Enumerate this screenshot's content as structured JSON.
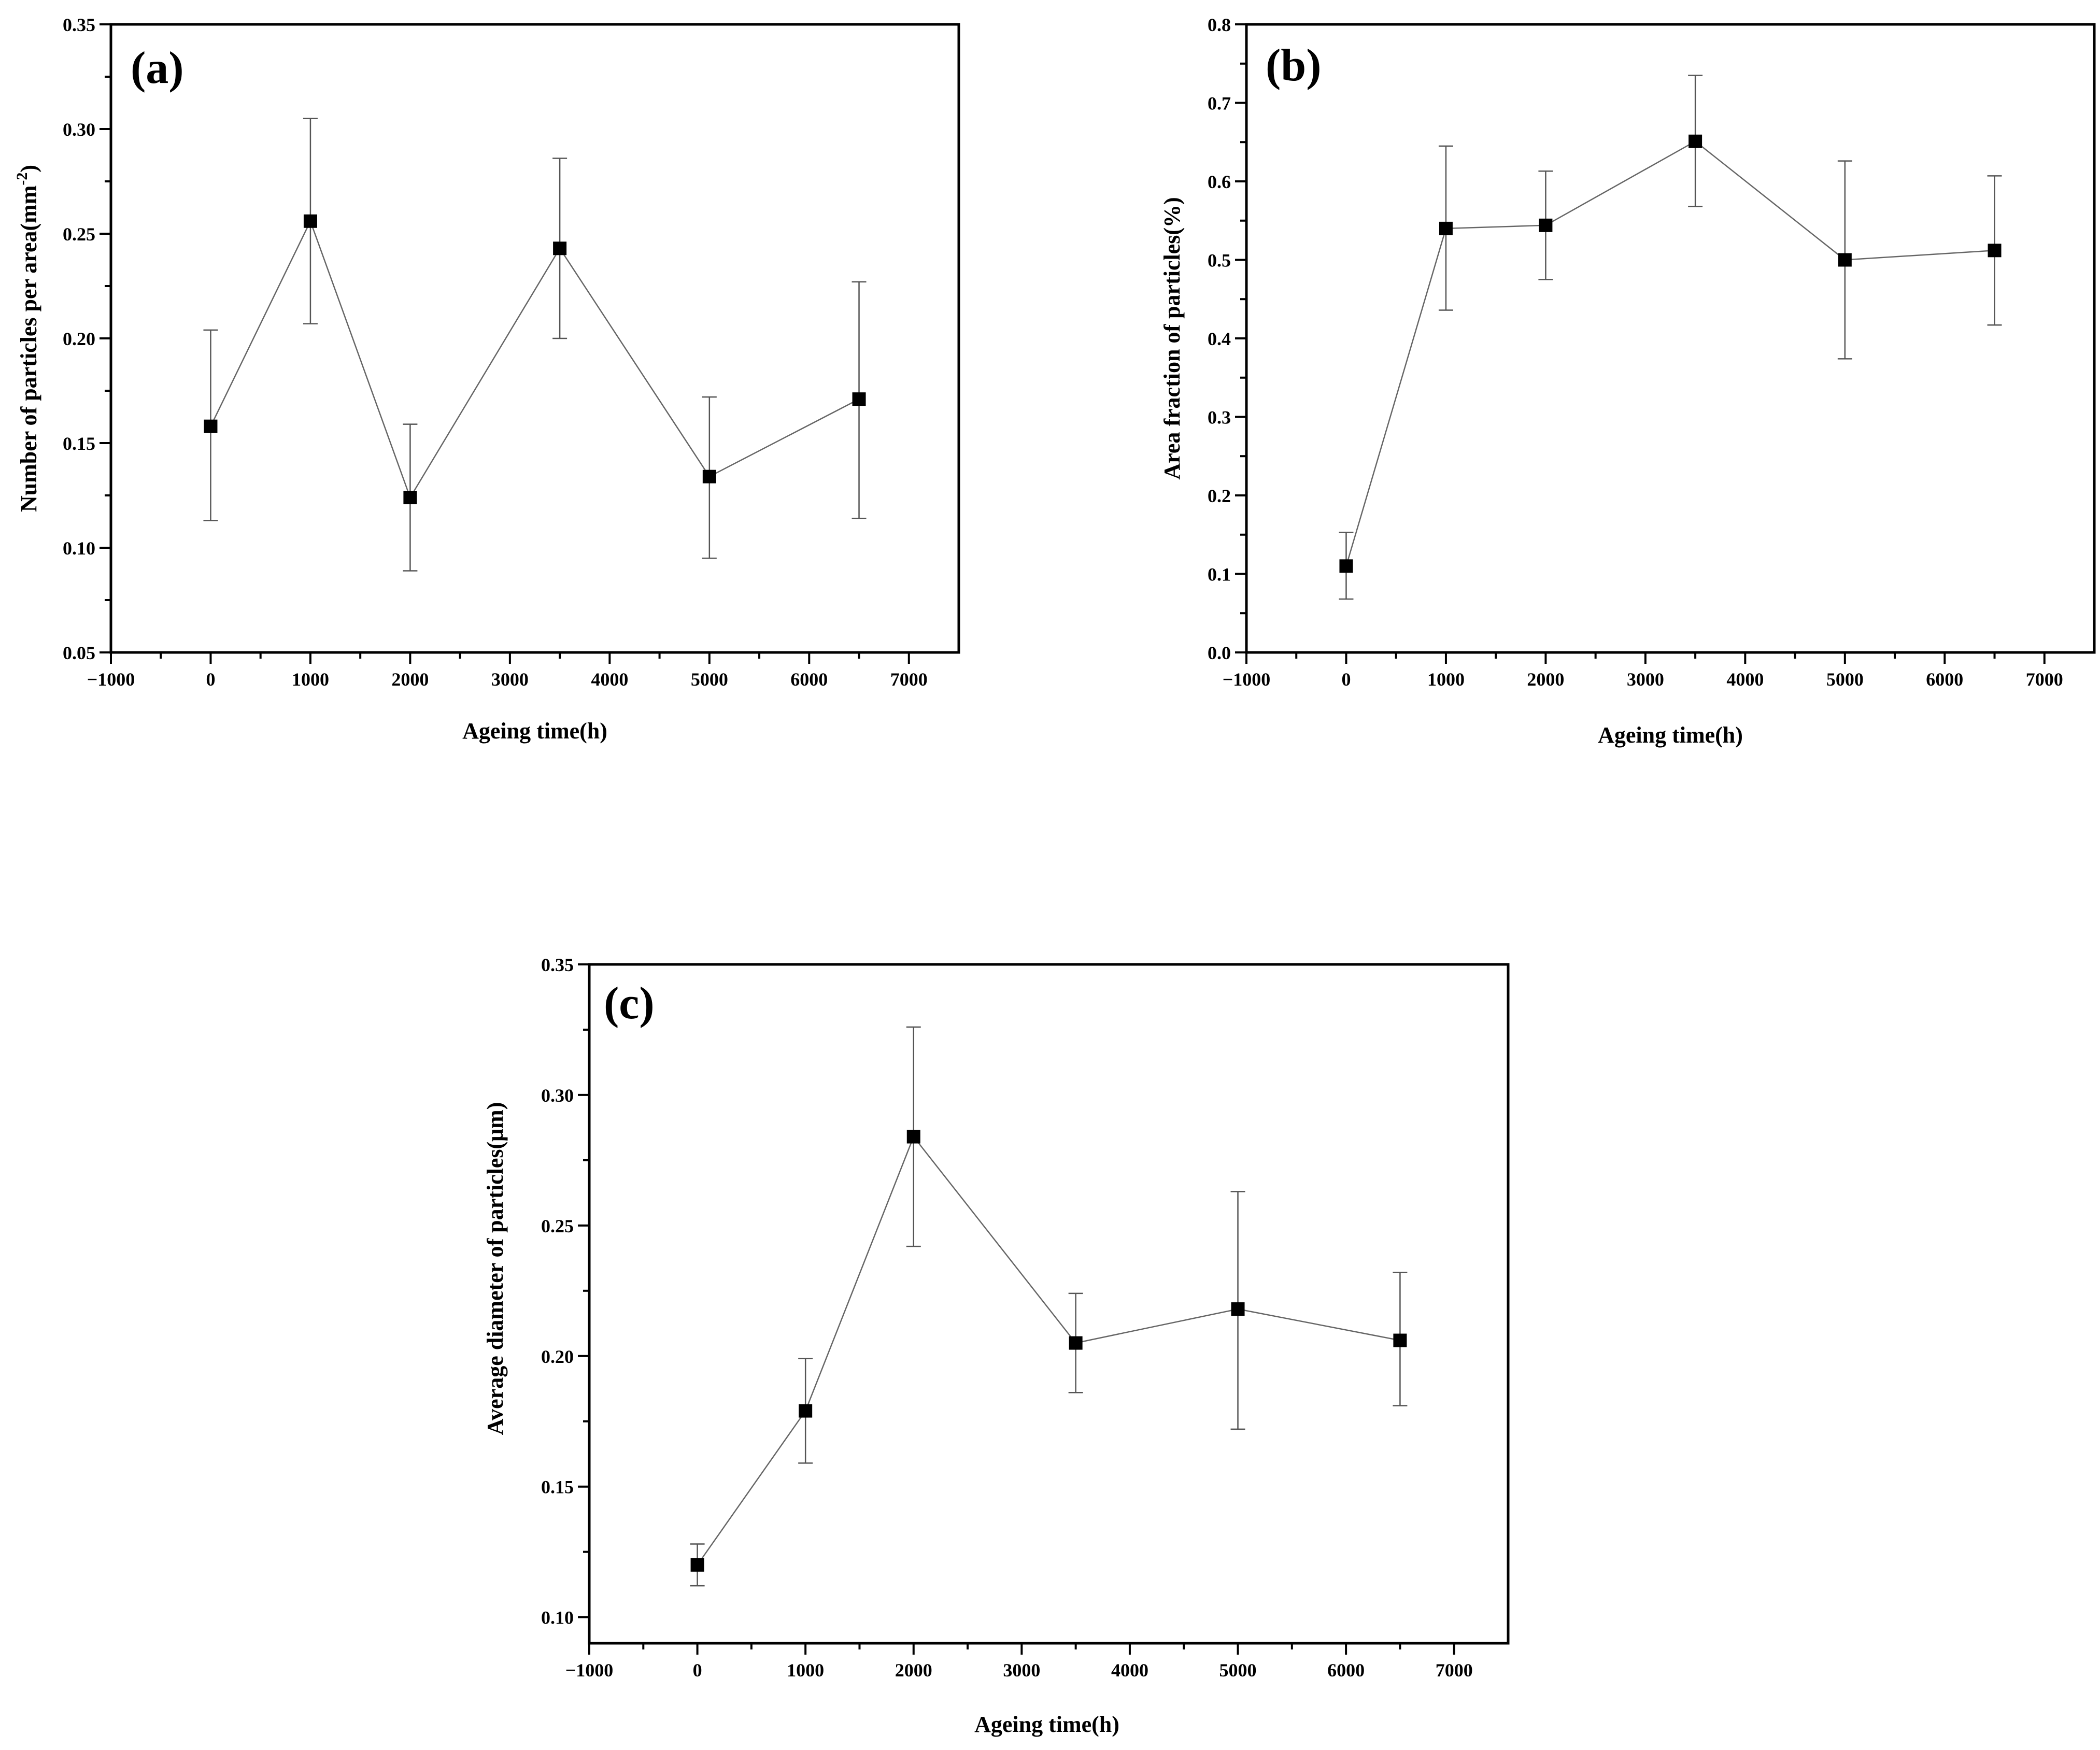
{
  "chart_data": [
    {
      "type": "scatter",
      "panel_label": "(a)",
      "xlabel": "Ageing time(h)",
      "ylabel": "Number of  particles per area(mm",
      "ylabel_superscript": "-2",
      "ylabel_suffix": ")",
      "xlim": [
        -1000,
        7500
      ],
      "ylim": [
        0.05,
        0.35
      ],
      "xticks": [
        -1000,
        0,
        1000,
        2000,
        3000,
        4000,
        5000,
        6000,
        7000
      ],
      "xtick_labels": [
        "−1000",
        "0",
        "1000",
        "2000",
        "3000",
        "4000",
        "5000",
        "6000",
        "7000"
      ],
      "yticks": [
        0.05,
        0.1,
        0.15,
        0.2,
        0.25,
        0.3,
        0.35
      ],
      "ytick_labels": [
        "0.05",
        "0.10",
        "0.15",
        "0.20",
        "0.25",
        "0.30",
        "0.35"
      ],
      "x": [
        0,
        1000,
        2000,
        3500,
        5000,
        6500
      ],
      "y": [
        0.158,
        0.256,
        0.124,
        0.243,
        0.134,
        0.171
      ],
      "err_low": [
        0.113,
        0.207,
        0.089,
        0.2,
        0.095,
        0.114
      ],
      "err_high": [
        0.204,
        0.305,
        0.159,
        0.286,
        0.172,
        0.227
      ]
    },
    {
      "type": "scatter",
      "panel_label": "(b)",
      "xlabel": "Ageing time(h)",
      "ylabel": "Area fraction of particles(%)",
      "ylabel_superscript": "",
      "ylabel_suffix": "",
      "xlim": [
        -1000,
        7500
      ],
      "ylim": [
        0.0,
        0.8
      ],
      "xticks": [
        -1000,
        0,
        1000,
        2000,
        3000,
        4000,
        5000,
        6000,
        7000
      ],
      "xtick_labels": [
        "−1000",
        "0",
        "1000",
        "2000",
        "3000",
        "4000",
        "5000",
        "6000",
        "7000"
      ],
      "yticks": [
        0.0,
        0.1,
        0.2,
        0.3,
        0.4,
        0.5,
        0.6,
        0.7,
        0.8
      ],
      "ytick_labels": [
        "0.0",
        "0.1",
        "0.2",
        "0.3",
        "0.4",
        "0.5",
        "0.6",
        "0.7",
        "0.8"
      ],
      "x": [
        0,
        1000,
        2000,
        3500,
        5000,
        6500
      ],
      "y": [
        0.11,
        0.54,
        0.544,
        0.651,
        0.5,
        0.512
      ],
      "err_low": [
        0.068,
        0.436,
        0.475,
        0.568,
        0.374,
        0.417
      ],
      "err_high": [
        0.153,
        0.645,
        0.613,
        0.735,
        0.626,
        0.607
      ]
    },
    {
      "type": "scatter",
      "panel_label": "(c)",
      "xlabel": "Ageing time(h)",
      "ylabel": "Average diameter of particles(μm)",
      "ylabel_superscript": "",
      "ylabel_suffix": "",
      "xlim": [
        -1000,
        7500
      ],
      "ylim": [
        0.09,
        0.35
      ],
      "xticks": [
        -1000,
        0,
        1000,
        2000,
        3000,
        4000,
        5000,
        6000,
        7000
      ],
      "xtick_labels": [
        "−1000",
        "0",
        "1000",
        "2000",
        "3000",
        "4000",
        "5000",
        "6000",
        "7000"
      ],
      "yticks": [
        0.1,
        0.15,
        0.2,
        0.25,
        0.3,
        0.35
      ],
      "ytick_labels": [
        "0.10",
        "0.15",
        "0.20",
        "0.25",
        "0.30",
        "0.35"
      ],
      "x": [
        0,
        1000,
        2000,
        3500,
        5000,
        6500
      ],
      "y": [
        0.12,
        0.179,
        0.284,
        0.205,
        0.218,
        0.206
      ],
      "err_low": [
        0.112,
        0.159,
        0.242,
        0.186,
        0.172,
        0.181
      ],
      "err_high": [
        0.128,
        0.199,
        0.326,
        0.224,
        0.263,
        0.232
      ]
    }
  ]
}
